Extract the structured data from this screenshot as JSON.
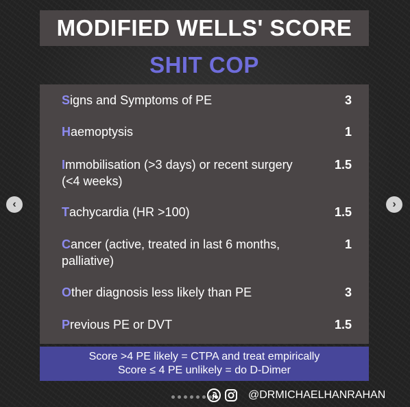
{
  "title": "MODIFIED WELLS' SCORE",
  "subtitle": "SHIT COP",
  "criteria": [
    {
      "letter": "S",
      "rest": "igns and Symptoms of PE",
      "score": "3"
    },
    {
      "letter": "H",
      "rest": "aemoptysis",
      "score": "1"
    },
    {
      "letter": "I",
      "rest": "mmobilisation (>3 days) or recent surgery (<4 weeks)",
      "score": "1.5"
    },
    {
      "letter": "T",
      "rest": "achycardia (HR >100)",
      "score": "1.5"
    },
    {
      "letter": "C",
      "rest": "ancer (active, treated in last 6 months, palliative)",
      "score": "1"
    },
    {
      "letter": "O",
      "rest": "ther diagnosis less likely than PE",
      "score": "3"
    },
    {
      "letter": "P",
      "rest": "revious PE or DVT",
      "score": "1.5"
    }
  ],
  "footer": {
    "line1": "Score >4 PE likely = CTPA and treat empirically",
    "line2": "Score ≤ 4 PE unlikely = do D-Dimer"
  },
  "nav": {
    "prev_icon": "‹",
    "next_icon": "›"
  },
  "carousel": {
    "total": 8,
    "active_index": 7
  },
  "handle": "@DRMICHAELHANRAHAN",
  "icons": [
    "chevron-left-icon",
    "chevron-right-icon",
    "pinterest-icon",
    "instagram-icon"
  ],
  "colors": {
    "panel": "#4a4546",
    "accent": "#8d8bf0",
    "subtitle": "#6f6ddb",
    "footer": "#47469a"
  }
}
